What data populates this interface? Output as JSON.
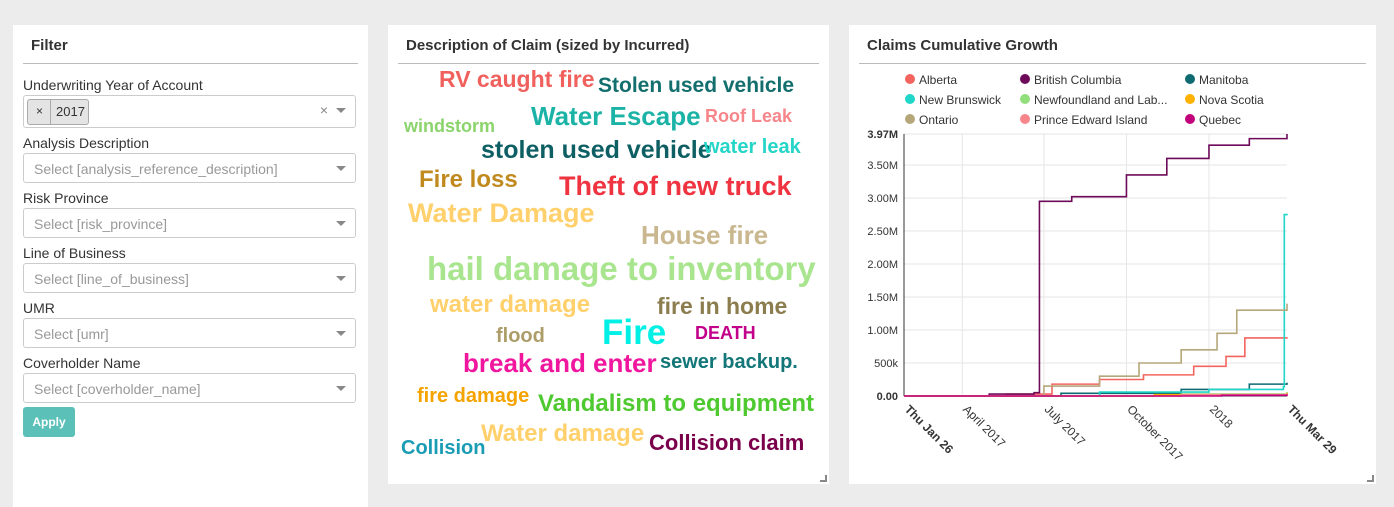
{
  "filter": {
    "title": "Filter",
    "fields": [
      {
        "label": "Underwriting Year of Account",
        "selected": "2017"
      },
      {
        "label": "Analysis Description",
        "placeholder": "Select [analysis_reference_description]"
      },
      {
        "label": "Risk Province",
        "placeholder": "Select [risk_province]"
      },
      {
        "label": "Line of Business",
        "placeholder": "Select [line_of_business]"
      },
      {
        "label": "UMR",
        "placeholder": "Select [umr]"
      },
      {
        "label": "Coverholder Name",
        "placeholder": "Select [coverholder_name]"
      }
    ],
    "tag_remove": "×",
    "clear": "×",
    "apply_label": "Apply"
  },
  "cloud": {
    "title": "Description of Claim (sized by Incurred)",
    "words": [
      {
        "text": "RV caught fire",
        "color": "#f0605d"
      },
      {
        "text": "Stolen used vehicle",
        "color": "#136e6e"
      },
      {
        "text": "windstorm",
        "color": "#8bd46b"
      },
      {
        "text": "Water Escape",
        "color": "#1ab3a6"
      },
      {
        "text": "Roof Leak",
        "color": "#f7868b"
      },
      {
        "text": "stolen used vehicle",
        "color": "#0e5f63"
      },
      {
        "text": "water leak",
        "color": "#25d6c8"
      },
      {
        "text": "Fire loss",
        "color": "#c08a1e"
      },
      {
        "text": "Theft of new truck",
        "color": "#ef3340"
      },
      {
        "text": "Water Damage",
        "color": "#ffd06b"
      },
      {
        "text": "House fire",
        "color": "#c9b88f"
      },
      {
        "text": "hail damage to inventory",
        "color": "#a9e58f"
      },
      {
        "text": "water damage",
        "color": "#ffd06b"
      },
      {
        "text": "fire in home",
        "color": "#8c7d4f"
      },
      {
        "text": "Fire",
        "color": "#00f0e6"
      },
      {
        "text": "flood",
        "color": "#ad9d69"
      },
      {
        "text": "DEATH",
        "color": "#c2008a"
      },
      {
        "text": "break and enter",
        "color": "#f0179e"
      },
      {
        "text": "sewer backup.",
        "color": "#137678"
      },
      {
        "text": "fire damage",
        "color": "#f5a300"
      },
      {
        "text": "Vandalism to equipment",
        "color": "#4ec930"
      },
      {
        "text": "Collision",
        "color": "#1a9cb5"
      },
      {
        "text": "Water damage",
        "color": "#ffd06b"
      },
      {
        "text": "Collision claim",
        "color": "#7a004b"
      }
    ]
  },
  "growth": {
    "title": "Claims Cumulative Growth"
  },
  "chart_data": {
    "type": "line",
    "title": "Claims Cumulative Growth",
    "legend_placement": "top",
    "grid": true,
    "x_ticks": [
      "Thu Jan 26",
      "April 2017",
      "July 2017",
      "October 2017",
      "2018",
      "Thu Mar 29"
    ],
    "y_ticks": [
      "0.00",
      "500k",
      "1.00M",
      "1.50M",
      "2.00M",
      "2.50M",
      "3.00M",
      "3.50M",
      "3.97M"
    ],
    "ylim": [
      0,
      3970000
    ],
    "x_domain": [
      "2017-01-26",
      "2018-03-29"
    ],
    "series": [
      {
        "name": "Alberta",
        "color": "#f4645f",
        "points": [
          [
            "2017-01-26",
            0
          ],
          [
            "2017-05-20",
            30000
          ],
          [
            "2017-07-10",
            180000
          ],
          [
            "2017-09-01",
            250000
          ],
          [
            "2017-10-20",
            320000
          ],
          [
            "2017-12-15",
            450000
          ],
          [
            "2018-01-20",
            600000
          ],
          [
            "2018-02-10",
            880000
          ],
          [
            "2018-03-29",
            890000
          ]
        ]
      },
      {
        "name": "British Columbia",
        "color": "#6d0b5a",
        "points": [
          [
            "2017-01-26",
            0
          ],
          [
            "2017-05-01",
            30000
          ],
          [
            "2017-06-20",
            50000
          ],
          [
            "2017-06-26",
            2950000
          ],
          [
            "2017-08-01",
            3020000
          ],
          [
            "2017-10-01",
            3350000
          ],
          [
            "2017-11-15",
            3600000
          ],
          [
            "2018-01-01",
            3800000
          ],
          [
            "2018-02-15",
            3900000
          ],
          [
            "2018-03-29",
            3970000
          ]
        ]
      },
      {
        "name": "Manitoba",
        "color": "#0e6b72",
        "points": [
          [
            "2017-01-26",
            0
          ],
          [
            "2017-07-20",
            40000
          ],
          [
            "2017-12-01",
            100000
          ],
          [
            "2018-02-15",
            180000
          ],
          [
            "2018-03-29",
            200000
          ]
        ]
      },
      {
        "name": "New Brunswick",
        "color": "#1fd6c9",
        "points": [
          [
            "2017-01-26",
            0
          ],
          [
            "2017-09-01",
            60000
          ],
          [
            "2018-01-01",
            100000
          ],
          [
            "2018-03-25",
            140000
          ],
          [
            "2018-03-26",
            2750000
          ],
          [
            "2018-03-29",
            2760000
          ]
        ]
      },
      {
        "name": "Newfoundland and Lab...",
        "color": "#90df7b",
        "points": [
          [
            "2017-01-26",
            0
          ],
          [
            "2017-12-01",
            30000
          ],
          [
            "2018-03-29",
            60000
          ]
        ]
      },
      {
        "name": "Nova Scotia",
        "color": "#ffb100",
        "points": [
          [
            "2017-01-26",
            0
          ],
          [
            "2017-11-01",
            20000
          ],
          [
            "2018-03-29",
            50000
          ]
        ]
      },
      {
        "name": "Ontario",
        "color": "#b5a77a",
        "points": [
          [
            "2017-01-26",
            0
          ],
          [
            "2017-07-01",
            150000
          ],
          [
            "2017-09-01",
            300000
          ],
          [
            "2017-10-15",
            500000
          ],
          [
            "2017-12-01",
            700000
          ],
          [
            "2018-01-10",
            950000
          ],
          [
            "2018-02-01",
            1300000
          ],
          [
            "2018-03-29",
            1400000
          ]
        ]
      },
      {
        "name": "Prince Edward Island",
        "color": "#f7868b",
        "points": [
          [
            "2017-01-26",
            0
          ],
          [
            "2017-12-01",
            20000
          ],
          [
            "2018-03-29",
            40000
          ]
        ]
      },
      {
        "name": "Quebec",
        "color": "#c3007c",
        "points": [
          [
            "2017-01-26",
            0
          ],
          [
            "2018-01-15",
            10000
          ],
          [
            "2018-03-29",
            25000
          ]
        ]
      }
    ]
  }
}
